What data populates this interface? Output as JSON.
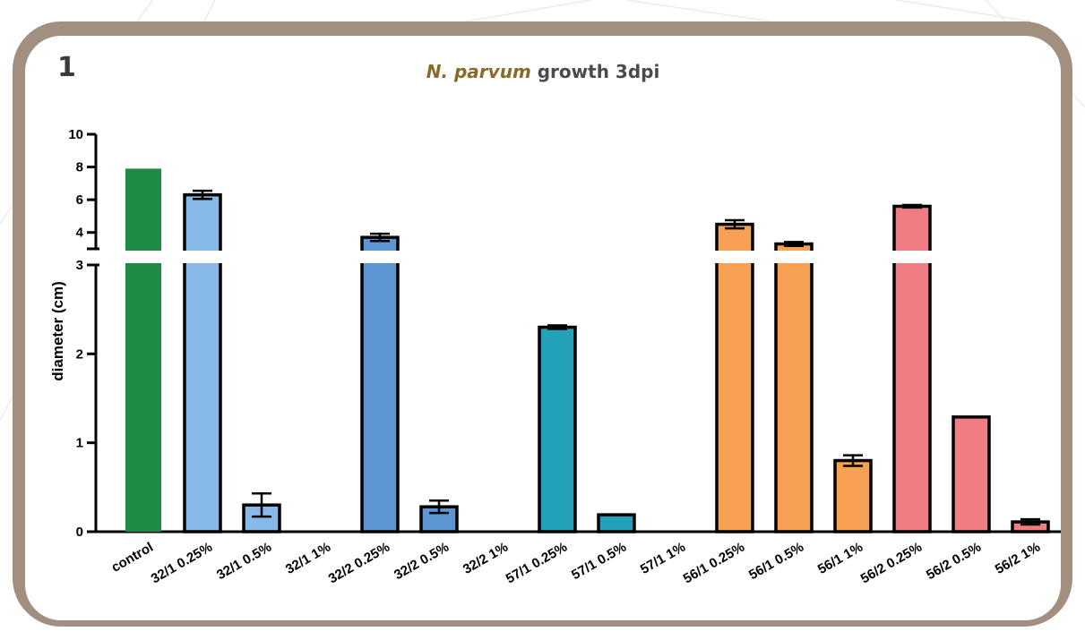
{
  "panel": {
    "number": "1",
    "title_italic": "N. parvum",
    "title_rest": " growth 3dpi"
  },
  "colors": {
    "frame": "#a18f7f",
    "control": "#1f8a45",
    "series_32_1": "#86b9e6",
    "series_32_2": "#5e96d3",
    "series_57_1": "#23a1b8",
    "series_56_1": "#f7a154",
    "series_56_2": "#f07c84"
  },
  "chart_data": {
    "type": "bar",
    "title": "N. parvum growth 3dpi",
    "ylabel": "diameter (cm)",
    "xlabel": "",
    "y_axis_break": {
      "lower_segment": [
        0,
        3
      ],
      "upper_segment": [
        3,
        10
      ]
    },
    "yticks_lower": [
      0,
      1,
      2,
      3
    ],
    "yticks_upper": [
      4,
      6,
      8,
      10
    ],
    "grid": false,
    "legend": "none",
    "categories": [
      "control",
      "32/1  0.25%",
      "32/1  0.5%",
      "32/1  1%",
      "32/2 0.25%",
      "32/2 0.5%",
      "32/2 1%",
      "57/1  0.25%",
      "57/1  0.5%",
      "57/1  1%",
      "56/1  0.25%",
      "56/1  0.5%",
      "56/1  1%",
      "56/2  0.25%",
      "56/2  0.5%",
      "56/2  1%"
    ],
    "values": [
      7.9,
      6.3,
      0.3,
      0,
      3.7,
      0.28,
      0,
      2.3,
      0.19,
      0,
      4.5,
      3.3,
      0.8,
      5.6,
      1.29,
      0.11
    ],
    "errors": [
      0,
      0.25,
      0.13,
      0,
      0.22,
      0.07,
      0,
      0.02,
      0,
      0,
      0.25,
      0.12,
      0.06,
      0.08,
      0,
      0.03
    ],
    "bar_colors": [
      "#1f8a45",
      "#86b9e6",
      "#86b9e6",
      "#86b9e6",
      "#5e96d3",
      "#5e96d3",
      "#5e96d3",
      "#23a1b8",
      "#23a1b8",
      "#23a1b8",
      "#f7a154",
      "#f7a154",
      "#f7a154",
      "#f07c84",
      "#f07c84",
      "#f07c84"
    ]
  }
}
